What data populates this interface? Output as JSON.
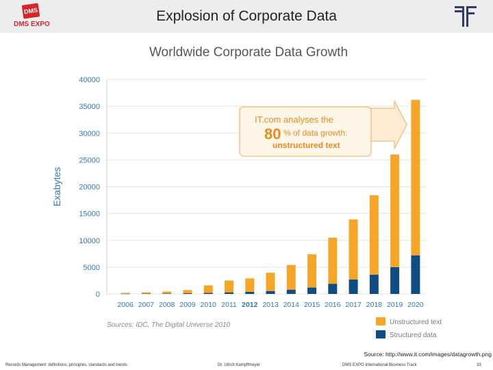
{
  "slide": {
    "title": "Explosion of Corporate Data",
    "logo_left_badge": "DMS",
    "logo_left_text": "DMS EXPO",
    "source": "Source: http://www.it.com/images/datagrowth.png",
    "footer": {
      "left": "Records Management: definitions, principles, standards and trends",
      "center": "Dr. Ulrich Kampffmeyer",
      "right": "DMS EXPO International Business Track",
      "page": "33"
    }
  },
  "chart_data": {
    "type": "bar",
    "stacked": true,
    "title": "Worldwide Corporate Data Growth",
    "ylabel": "Exabytes",
    "xlabel": "",
    "ylim": [
      0,
      40000
    ],
    "yticks": [
      0,
      5000,
      10000,
      15000,
      20000,
      25000,
      30000,
      35000,
      40000
    ],
    "grid": true,
    "categories": [
      "2006",
      "2007",
      "2008",
      "2009",
      "2010",
      "2011",
      "2012",
      "2013",
      "2014",
      "2015",
      "2016",
      "2017",
      "2018",
      "2019",
      "2020"
    ],
    "highlight_category": "2012",
    "series": [
      {
        "name": "Structured data",
        "color": "#0f4c81",
        "values": [
          40,
          60,
          90,
          130,
          200,
          300,
          400,
          550,
          800,
          1200,
          1900,
          2700,
          3600,
          5000,
          7200
        ]
      },
      {
        "name": "Unstructured text",
        "color": "#f5a52a",
        "values": [
          160,
          240,
          360,
          600,
          1400,
          2200,
          2500,
          3400,
          4600,
          6200,
          8600,
          11200,
          14800,
          21000,
          29000
        ]
      }
    ],
    "legend_position": "bottom-right",
    "annotation": {
      "line1": "IT.com analyses the",
      "number": "80",
      "line2": "% of data growth:",
      "line3": "unstructured text"
    },
    "sources_note": "Sources: IDC, The Digital Universe 2010"
  },
  "colors": {
    "title_gray": "#555555",
    "axis_blue": "#2e7ab8",
    "annotation_orange": "#e98a1d",
    "legend_text": "#7a7a7a"
  }
}
